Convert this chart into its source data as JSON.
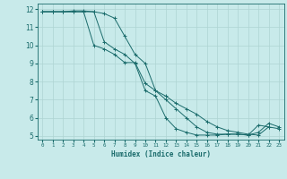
{
  "title": "",
  "xlabel": "Humidex (Indice chaleur)",
  "bg_color": "#c8eaea",
  "grid_color": "#aed4d2",
  "line_color": "#1a6b6b",
  "xlim": [
    -0.5,
    23.5
  ],
  "ylim": [
    4.8,
    12.3
  ],
  "yticks": [
    5,
    6,
    7,
    8,
    9,
    10,
    11,
    12
  ],
  "xticks": [
    0,
    1,
    2,
    3,
    4,
    5,
    6,
    7,
    8,
    9,
    10,
    11,
    12,
    13,
    14,
    15,
    16,
    17,
    18,
    19,
    20,
    21,
    22,
    23
  ],
  "lines": [
    {
      "x": [
        0,
        1,
        2,
        3,
        4,
        5,
        6,
        7,
        8,
        9,
        10,
        11,
        12,
        13,
        14,
        15,
        16,
        17,
        18,
        19,
        20,
        21,
        22
      ],
      "y": [
        11.85,
        11.85,
        11.85,
        11.9,
        11.9,
        11.85,
        10.2,
        9.8,
        9.5,
        9.0,
        7.5,
        7.2,
        6.0,
        5.4,
        5.2,
        5.05,
        5.05,
        5.05,
        5.1,
        5.1,
        5.05,
        5.6,
        5.5
      ]
    },
    {
      "x": [
        0,
        1,
        2,
        3,
        4,
        5,
        6,
        7,
        8,
        9,
        10,
        11,
        12,
        13,
        14,
        15,
        16,
        17,
        18,
        19,
        20,
        21,
        22,
        23
      ],
      "y": [
        11.85,
        11.85,
        11.85,
        11.85,
        11.85,
        10.0,
        9.8,
        9.5,
        9.05,
        9.05,
        7.9,
        7.5,
        7.2,
        6.8,
        6.5,
        6.2,
        5.8,
        5.5,
        5.3,
        5.2,
        5.1,
        5.05,
        5.5,
        5.4
      ]
    },
    {
      "x": [
        0,
        1,
        2,
        3,
        4,
        5,
        6,
        7,
        8,
        9,
        10,
        11,
        12,
        13,
        14,
        15,
        16,
        17,
        18,
        19,
        20,
        21,
        22,
        23
      ],
      "y": [
        11.85,
        11.85,
        11.85,
        11.85,
        11.85,
        11.85,
        11.75,
        11.5,
        10.5,
        9.5,
        9.0,
        7.5,
        7.0,
        6.5,
        6.0,
        5.5,
        5.2,
        5.1,
        5.1,
        5.1,
        5.05,
        5.2,
        5.7,
        5.5
      ]
    }
  ]
}
